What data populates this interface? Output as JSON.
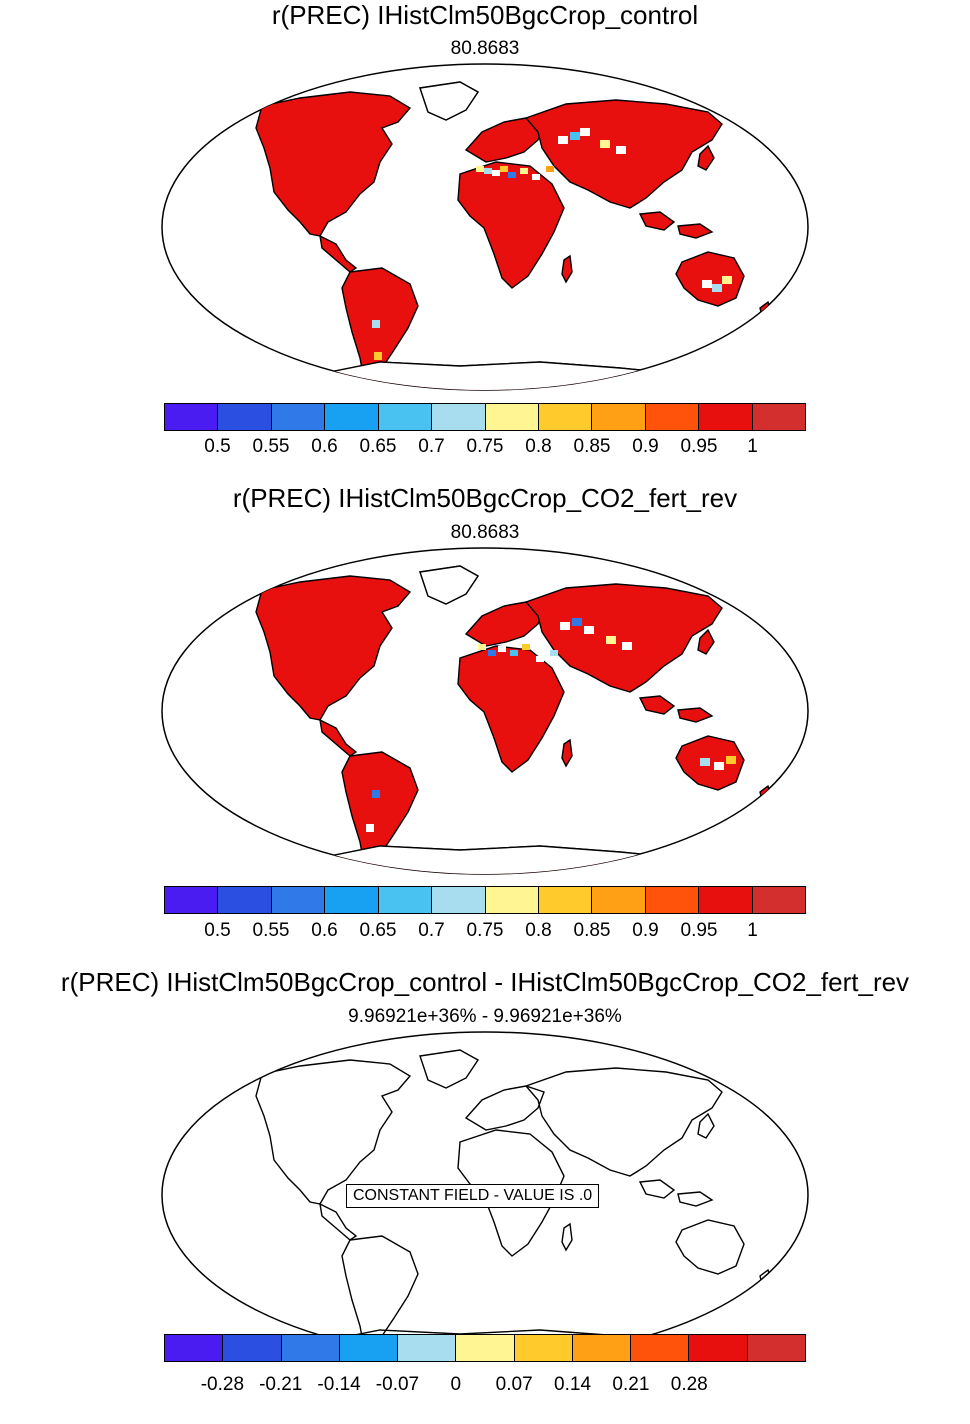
{
  "panels": [
    {
      "title": "r(PREC) IHistClm50BgcCrop_control",
      "subtitle": "80.8683",
      "colorbar": {
        "colors": [
          "#4a1cf2",
          "#2b4fe0",
          "#2f7ae8",
          "#18a0f2",
          "#49c2f2",
          "#a8dcef",
          "#fff593",
          "#ffcb2c",
          "#ffa015",
          "#ff530b",
          "#e8100f",
          "#d32f2f"
        ],
        "tick_labels": [
          "0.5",
          "0.55",
          "0.6",
          "0.65",
          "0.7",
          "0.75",
          "0.8",
          "0.85",
          "0.9",
          "0.95",
          "1"
        ]
      }
    },
    {
      "title": "r(PREC) IHistClm50BgcCrop_CO2_fert_rev",
      "subtitle": "80.8683",
      "colorbar": {
        "colors": [
          "#4a1cf2",
          "#2b4fe0",
          "#2f7ae8",
          "#18a0f2",
          "#49c2f2",
          "#a8dcef",
          "#fff593",
          "#ffcb2c",
          "#ffa015",
          "#ff530b",
          "#e8100f",
          "#d32f2f"
        ],
        "tick_labels": [
          "0.5",
          "0.55",
          "0.6",
          "0.65",
          "0.7",
          "0.75",
          "0.8",
          "0.85",
          "0.9",
          "0.95",
          "1"
        ]
      }
    },
    {
      "title": "r(PREC) IHistClm50BgcCrop_control - IHistClm50BgcCrop_CO2_fert_rev",
      "subtitle": "9.96921e+36% - 9.96921e+36%",
      "constant_field_label": "CONSTANT FIELD - VALUE IS .0",
      "colorbar": {
        "colors": [
          "#4a1cf2",
          "#2b4fe0",
          "#2f7ae8",
          "#18a0f2",
          "#a8dcef",
          "#fff593",
          "#ffcb2c",
          "#ffa015",
          "#ff530b",
          "#e8100f",
          "#d32f2f"
        ],
        "tick_labels": [
          "-0.28",
          "-0.21",
          "-0.14",
          "-0.07",
          "0",
          "0.07",
          "0.14",
          "0.21",
          "0.28"
        ]
      }
    }
  ],
  "colors": {
    "land_fill": "#e8100f",
    "border": "#000000",
    "ocean": "#ffffff"
  }
}
